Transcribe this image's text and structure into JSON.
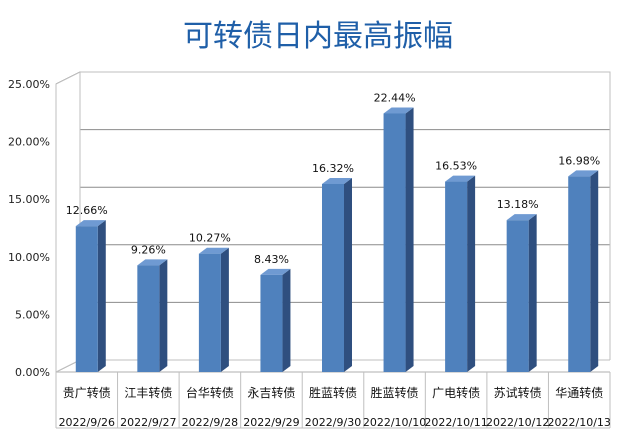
{
  "chart_data": {
    "type": "bar",
    "title": "可转债日内最高振幅",
    "categories": [
      {
        "name": "贵广转债",
        "date": "2022/9/26"
      },
      {
        "name": "江丰转债",
        "date": "2022/9/27"
      },
      {
        "name": "台华转债",
        "date": "2022/9/28"
      },
      {
        "name": "永吉转债",
        "date": "2022/9/29"
      },
      {
        "name": "胜蓝转债",
        "date": "2022/9/30"
      },
      {
        "name": "胜蓝转债",
        "date": "2022/10/10"
      },
      {
        "name": "广电转债",
        "date": "2022/10/11"
      },
      {
        "name": "苏试转债",
        "date": "2022/10/12"
      },
      {
        "name": "华通转债",
        "date": "2022/10/13"
      }
    ],
    "values": [
      12.66,
      9.26,
      10.27,
      8.43,
      16.32,
      22.44,
      16.53,
      13.18,
      16.98
    ],
    "value_labels": [
      "12.66%",
      "9.26%",
      "10.27%",
      "8.43%",
      "16.32%",
      "22.44%",
      "16.53%",
      "13.18%",
      "16.98%"
    ],
    "y_ticks": [
      "0.00%",
      "5.00%",
      "10.00%",
      "15.00%",
      "20.00%",
      "25.00%"
    ],
    "ylim": [
      0,
      25
    ],
    "grid": true,
    "legend": "none",
    "colors": {
      "bar_front": "#4f81bd",
      "bar_side": "#2f4f7f",
      "bar_top": "#6f9ad2",
      "title": "#1f5fa8",
      "grid": "#8c8c8c",
      "wall": "#bfbfbf"
    }
  }
}
